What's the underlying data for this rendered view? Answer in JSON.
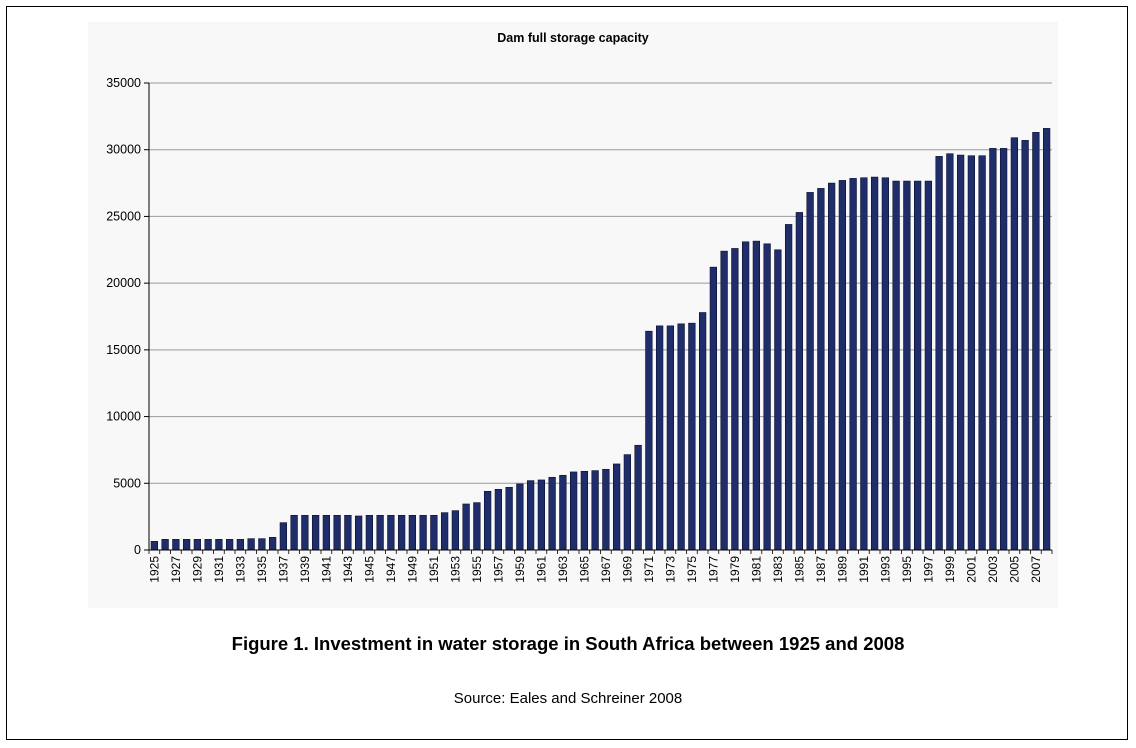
{
  "figure": {
    "caption": "Figure 1. Investment in water storage in South Africa between 1925 and 2008",
    "source": "Source: Eales and Schreiner 2008"
  },
  "colors": {
    "bar": "#1f2d6b",
    "bar_edge": "#0a0f2e",
    "grid": "#9a9a9a",
    "axis": "#000000"
  },
  "chart_data": {
    "type": "bar",
    "title": "Dam full storage capacity",
    "xlabel": "",
    "ylabel": "",
    "ylim": [
      0,
      35000
    ],
    "yticks": [
      0,
      5000,
      10000,
      15000,
      20000,
      25000,
      30000,
      35000
    ],
    "grid": true,
    "legend": "none",
    "categories": [
      1925,
      1926,
      1927,
      1928,
      1929,
      1930,
      1931,
      1932,
      1933,
      1934,
      1935,
      1936,
      1937,
      1938,
      1939,
      1940,
      1941,
      1942,
      1943,
      1944,
      1945,
      1946,
      1947,
      1948,
      1949,
      1950,
      1951,
      1952,
      1953,
      1954,
      1955,
      1956,
      1957,
      1958,
      1959,
      1960,
      1961,
      1962,
      1963,
      1964,
      1965,
      1966,
      1967,
      1968,
      1969,
      1970,
      1971,
      1972,
      1973,
      1974,
      1975,
      1976,
      1977,
      1978,
      1979,
      1980,
      1981,
      1982,
      1983,
      1984,
      1985,
      1986,
      1987,
      1988,
      1989,
      1990,
      1991,
      1992,
      1993,
      1994,
      1995,
      1996,
      1997,
      1998,
      1999,
      2000,
      2001,
      2002,
      2003,
      2004,
      2005,
      2006,
      2007,
      2008
    ],
    "xtick_labels": [
      "1925",
      "1927",
      "1929",
      "1931",
      "1933",
      "1935",
      "1937",
      "1939",
      "1941",
      "1943",
      "1945",
      "1947",
      "1949",
      "1951",
      "1953",
      "1955",
      "1957",
      "1959",
      "1961",
      "1963",
      "1965",
      "1967",
      "1969",
      "1971",
      "1973",
      "1975",
      "1977",
      "1979",
      "1981",
      "1983",
      "1985",
      "1987",
      "1989",
      "1991",
      "1993",
      "1995",
      "1997",
      "1999",
      "2001",
      "2003",
      "2005",
      "2007"
    ],
    "values": [
      650,
      800,
      800,
      800,
      800,
      800,
      800,
      800,
      800,
      850,
      850,
      950,
      2050,
      2600,
      2600,
      2600,
      2600,
      2600,
      2600,
      2550,
      2600,
      2600,
      2600,
      2600,
      2600,
      2600,
      2600,
      2800,
      2950,
      3450,
      3550,
      4400,
      4550,
      4700,
      4950,
      5200,
      5250,
      5450,
      5600,
      5850,
      5900,
      5950,
      6050,
      6450,
      7150,
      7850,
      16400,
      16800,
      16800,
      16950,
      17000,
      17800,
      21200,
      22400,
      22600,
      23100,
      23150,
      22950,
      22500,
      24400,
      25300,
      26800,
      27100,
      27500,
      27700,
      27850,
      27900,
      27950,
      27900,
      27650,
      27650,
      27650,
      27650,
      29500,
      29700,
      29600,
      29550,
      29550,
      30100,
      30100,
      30900,
      30700,
      31300,
      31600
    ]
  }
}
